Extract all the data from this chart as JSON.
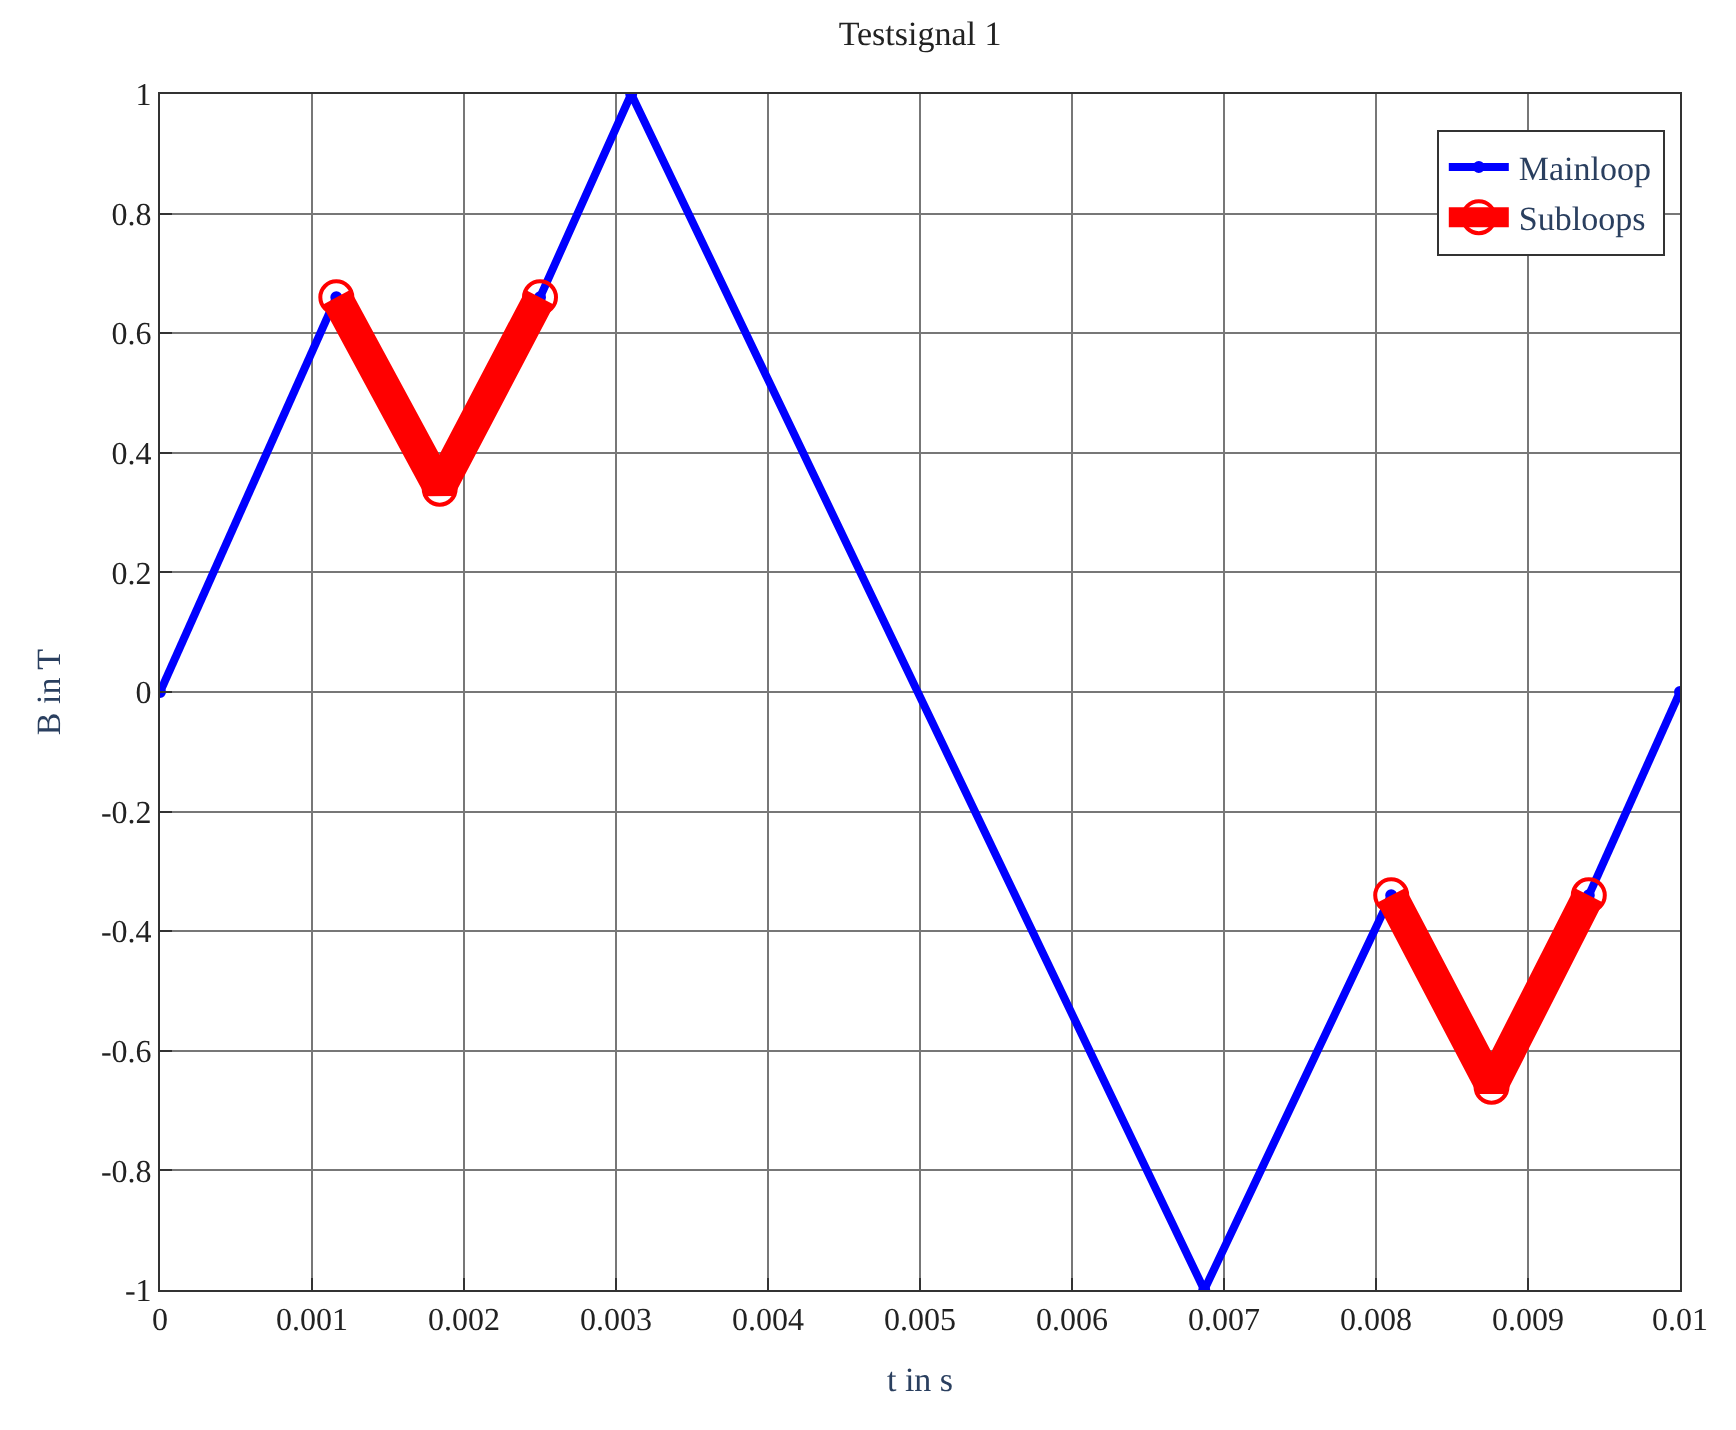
{
  "chart_data": {
    "type": "line",
    "title": "Testsignal 1",
    "xlabel": "t in s",
    "ylabel": "B in T",
    "series": [
      {
        "name": "Mainloop",
        "color": "#0000ff",
        "marker": "circle",
        "x": [
          0,
          0.00116,
          0.00184,
          0.0025,
          0.0031,
          0.00687,
          0.0081,
          0.00876,
          0.0094,
          0.01
        ],
        "values": [
          0,
          0.66,
          null,
          0.66,
          1,
          -1,
          -0.34,
          null,
          -0.34,
          0
        ]
      },
      {
        "name": "Subloops",
        "color": "#ff0000",
        "marker": "circle",
        "x": [
          0.00116,
          0.00184,
          0.0025,
          null,
          0.0081,
          0.00876,
          0.0094
        ],
        "values": [
          0.66,
          0.34,
          0.66,
          null,
          -0.34,
          -0.66,
          -0.34
        ]
      }
    ],
    "xlim": [
      0,
      0.01
    ],
    "xticks": [
      0,
      0.001,
      0.002,
      0.003,
      0.004,
      0.005,
      0.006,
      0.007,
      0.008,
      0.009,
      0.01
    ],
    "ylim": [
      -1,
      1
    ],
    "yticks": [
      -1,
      -0.8,
      -0.6,
      -0.4,
      -0.2,
      0,
      0.2,
      0.4,
      0.6,
      0.8,
      1
    ],
    "grid": true,
    "legend": "top right"
  }
}
